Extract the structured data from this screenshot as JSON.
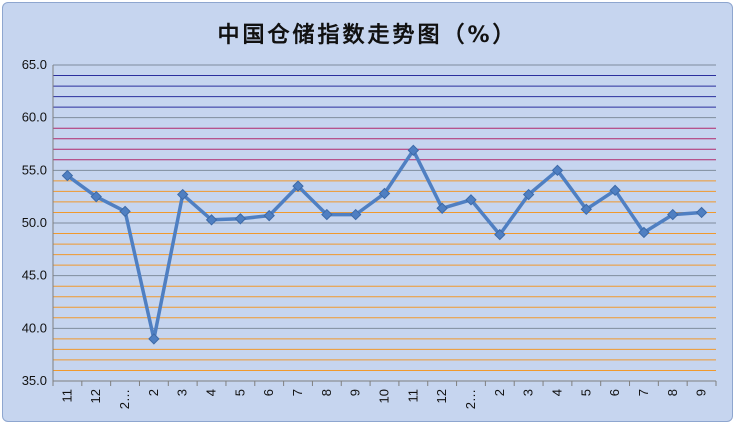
{
  "chart_data": {
    "type": "line",
    "title": "中国仓储指数走势图（%）",
    "xlabel": "",
    "ylabel": "",
    "ylim": [
      35,
      65
    ],
    "y_ticks": [
      "35.0",
      "40.0",
      "45.0",
      "50.0",
      "55.0",
      "60.0",
      "65.0"
    ],
    "categories": [
      "11",
      "12",
      "2…",
      "2",
      "3",
      "4",
      "5",
      "6",
      "7",
      "8",
      "9",
      "10",
      "11",
      "12",
      "2…",
      "2",
      "3",
      "4",
      "5",
      "6",
      "7",
      "8",
      "9"
    ],
    "series": [
      {
        "values": [
          54.5,
          52.5,
          51.1,
          39.0,
          52.7,
          50.3,
          50.4,
          50.7,
          53.5,
          50.8,
          50.8,
          52.8,
          56.9,
          51.4,
          52.2,
          48.9,
          52.7,
          55.0,
          51.3,
          53.1,
          49.1,
          50.8,
          51.0
        ],
        "color": "#4f7fc2"
      }
    ],
    "grid": true,
    "legend": "none"
  }
}
